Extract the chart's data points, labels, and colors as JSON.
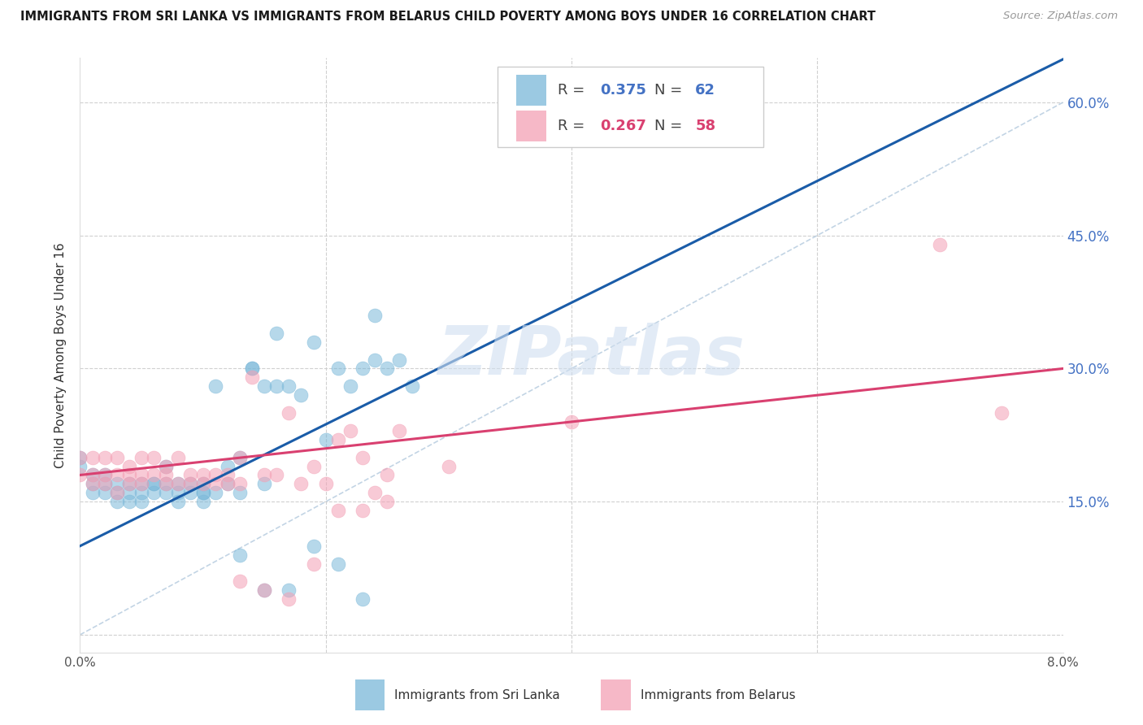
{
  "title": "IMMIGRANTS FROM SRI LANKA VS IMMIGRANTS FROM BELARUS CHILD POVERTY AMONG BOYS UNDER 16 CORRELATION CHART",
  "source": "Source: ZipAtlas.com",
  "ylabel": "Child Poverty Among Boys Under 16",
  "xrange": [
    0.0,
    0.08
  ],
  "yrange": [
    -0.02,
    0.65
  ],
  "yticks": [
    0.0,
    0.15,
    0.3,
    0.45,
    0.6
  ],
  "ytick_labels": [
    "",
    "15.0%",
    "30.0%",
    "45.0%",
    "60.0%"
  ],
  "sri_lanka_R": 0.375,
  "sri_lanka_N": 62,
  "belarus_R": 0.267,
  "belarus_N": 58,
  "sri_lanka_color": "#7ab8d9",
  "belarus_color": "#f4a0b5",
  "sri_lanka_line_color": "#1a5ca8",
  "belarus_line_color": "#d94070",
  "diagonal_color": "#b8cde0",
  "watermark_color": "#d0dff0",
  "sri_lanka_x": [
    0.0,
    0.0,
    0.001,
    0.001,
    0.001,
    0.002,
    0.002,
    0.002,
    0.003,
    0.003,
    0.003,
    0.004,
    0.004,
    0.004,
    0.005,
    0.005,
    0.005,
    0.006,
    0.006,
    0.006,
    0.007,
    0.007,
    0.007,
    0.008,
    0.008,
    0.008,
    0.009,
    0.009,
    0.01,
    0.01,
    0.01,
    0.01,
    0.011,
    0.011,
    0.012,
    0.012,
    0.013,
    0.013,
    0.014,
    0.014,
    0.015,
    0.015,
    0.016,
    0.016,
    0.017,
    0.018,
    0.019,
    0.02,
    0.021,
    0.022,
    0.023,
    0.024,
    0.024,
    0.025,
    0.026,
    0.027,
    0.013,
    0.015,
    0.017,
    0.019,
    0.021,
    0.023
  ],
  "sri_lanka_y": [
    0.2,
    0.19,
    0.18,
    0.17,
    0.16,
    0.17,
    0.16,
    0.18,
    0.17,
    0.16,
    0.15,
    0.17,
    0.16,
    0.15,
    0.17,
    0.15,
    0.16,
    0.17,
    0.16,
    0.17,
    0.16,
    0.17,
    0.19,
    0.15,
    0.17,
    0.16,
    0.16,
    0.17,
    0.16,
    0.17,
    0.15,
    0.16,
    0.16,
    0.28,
    0.17,
    0.19,
    0.16,
    0.2,
    0.3,
    0.3,
    0.17,
    0.28,
    0.34,
    0.28,
    0.28,
    0.27,
    0.33,
    0.22,
    0.3,
    0.28,
    0.3,
    0.36,
    0.31,
    0.3,
    0.31,
    0.28,
    0.09,
    0.05,
    0.05,
    0.1,
    0.08,
    0.04
  ],
  "belarus_x": [
    0.0,
    0.0,
    0.001,
    0.001,
    0.001,
    0.002,
    0.002,
    0.002,
    0.003,
    0.003,
    0.003,
    0.004,
    0.004,
    0.004,
    0.005,
    0.005,
    0.005,
    0.006,
    0.006,
    0.007,
    0.007,
    0.007,
    0.008,
    0.008,
    0.009,
    0.009,
    0.01,
    0.01,
    0.011,
    0.011,
    0.012,
    0.012,
    0.013,
    0.013,
    0.014,
    0.015,
    0.016,
    0.017,
    0.018,
    0.019,
    0.02,
    0.021,
    0.022,
    0.023,
    0.024,
    0.025,
    0.026,
    0.013,
    0.015,
    0.017,
    0.019,
    0.021,
    0.023,
    0.025,
    0.03,
    0.04,
    0.07,
    0.075
  ],
  "belarus_y": [
    0.2,
    0.18,
    0.18,
    0.2,
    0.17,
    0.18,
    0.17,
    0.2,
    0.16,
    0.18,
    0.2,
    0.17,
    0.19,
    0.18,
    0.18,
    0.2,
    0.17,
    0.18,
    0.2,
    0.17,
    0.19,
    0.18,
    0.2,
    0.17,
    0.17,
    0.18,
    0.17,
    0.18,
    0.17,
    0.18,
    0.17,
    0.18,
    0.17,
    0.2,
    0.29,
    0.18,
    0.18,
    0.25,
    0.17,
    0.19,
    0.17,
    0.22,
    0.23,
    0.2,
    0.16,
    0.18,
    0.23,
    0.06,
    0.05,
    0.04,
    0.08,
    0.14,
    0.14,
    0.15,
    0.19,
    0.24,
    0.44,
    0.25
  ]
}
